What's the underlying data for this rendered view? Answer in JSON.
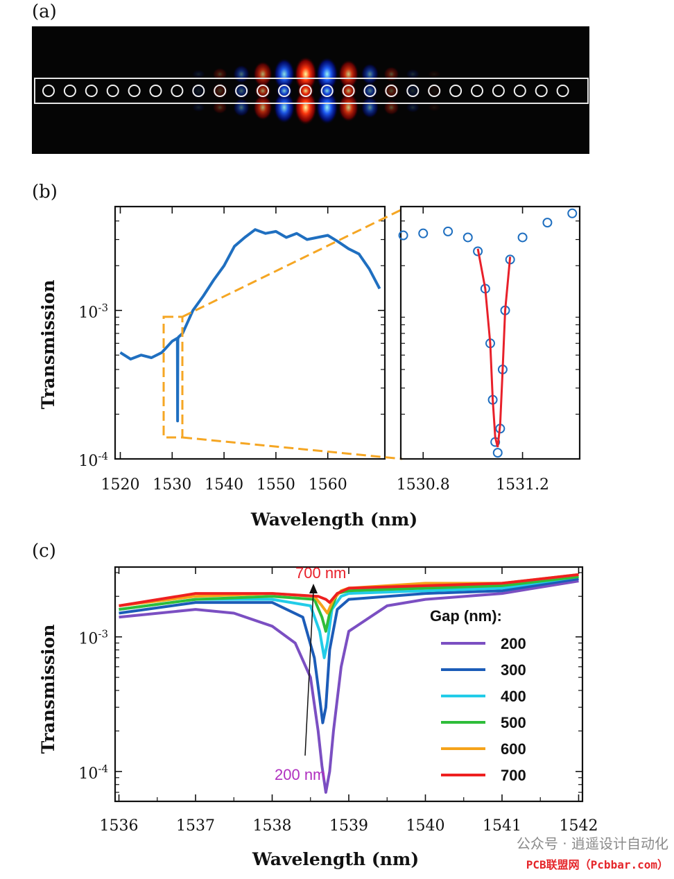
{
  "panels": {
    "a": "(a)",
    "b": "(b)",
    "c": "(c)"
  },
  "colors": {
    "blue": "#1f6fc0",
    "orange": "#f5a623",
    "red_fit": "#e8202a",
    "series": [
      "#7b4fc2",
      "#1c5cb8",
      "#22cce8",
      "#2ebd3a",
      "#f5a31a",
      "#ee2020"
    ]
  },
  "chart_data": [
    {
      "id": "b_main",
      "type": "line",
      "xlabel": "Wavelength (nm)",
      "ylabel": "Transmission",
      "x_ticks": [
        "1520",
        "1530",
        "1540",
        "1550",
        "1560"
      ],
      "y_ticks": [
        "10-3",
        "10-4"
      ],
      "xlim": [
        1519,
        1571
      ],
      "ylim": [
        0.0001,
        0.005
      ],
      "yscale": "log",
      "grid": false,
      "x": [
        1520,
        1522,
        1524,
        1526,
        1528,
        1530,
        1531,
        1531.05,
        1531.1,
        1531.2,
        1532,
        1534,
        1536,
        1538,
        1540,
        1542,
        1544,
        1546,
        1548,
        1550,
        1552,
        1554,
        1556,
        1558,
        1560,
        1562,
        1564,
        1566,
        1568,
        1570
      ],
      "y": [
        0.00052,
        0.00047,
        0.0005,
        0.00048,
        0.00052,
        0.00062,
        0.00065,
        0.00018,
        0.00064,
        0.00066,
        0.0007,
        0.001,
        0.00125,
        0.0016,
        0.002,
        0.0027,
        0.0031,
        0.0035,
        0.0033,
        0.0034,
        0.0031,
        0.0033,
        0.003,
        0.0031,
        0.0032,
        0.0029,
        0.0026,
        0.0024,
        0.0019,
        0.0014
      ]
    },
    {
      "id": "b_inset",
      "type": "scatter",
      "x_ticks": [
        "1530.8",
        "1531.2"
      ],
      "xlim": [
        1530.71,
        1531.43
      ],
      "ylim": [
        0.0001,
        0.005
      ],
      "yscale": "log",
      "series": [
        {
          "style": "markers",
          "x": [
            1530.72,
            1530.8,
            1530.9,
            1530.98,
            1531.02,
            1531.05,
            1531.07,
            1531.08,
            1531.09,
            1531.1,
            1531.11,
            1531.12,
            1531.13,
            1531.15,
            1531.2,
            1531.3,
            1531.4
          ],
          "y": [
            0.0032,
            0.0033,
            0.0034,
            0.0031,
            0.0025,
            0.0014,
            0.0006,
            0.00025,
            0.00013,
            0.00011,
            0.00016,
            0.0004,
            0.001,
            0.0022,
            0.0031,
            0.0039,
            0.0045
          ]
        },
        {
          "style": "fit",
          "x": [
            1531.02,
            1531.05,
            1531.07,
            1531.08,
            1531.09,
            1531.1,
            1531.11,
            1531.12,
            1531.13,
            1531.15
          ],
          "y": [
            0.0026,
            0.0014,
            0.0006,
            0.00025,
            0.00014,
            0.00012,
            0.00017,
            0.0004,
            0.001,
            0.0023
          ]
        }
      ]
    },
    {
      "id": "c",
      "type": "line",
      "xlabel": "Wavelength (nm)",
      "ylabel": "Transmission",
      "x_ticks": [
        "1536",
        "1537",
        "1538",
        "1539",
        "1540",
        "1541",
        "1542"
      ],
      "y_ticks": [
        "10-3",
        "10-4"
      ],
      "xlim": [
        1535.95,
        1542.05
      ],
      "ylim": [
        6e-05,
        0.0033
      ],
      "yscale": "log",
      "legend_title": "Gap (nm):",
      "legend_position": "right",
      "annotations": {
        "top": "700 nm",
        "bottom": "200 nm"
      },
      "series": [
        {
          "name": "200",
          "x": [
            1536,
            1537,
            1537.5,
            1538,
            1538.3,
            1538.5,
            1538.6,
            1538.65,
            1538.7,
            1538.75,
            1538.8,
            1538.9,
            1539,
            1539.5,
            1540,
            1541,
            1542
          ],
          "y": [
            0.0014,
            0.0016,
            0.0015,
            0.0012,
            0.0009,
            0.0005,
            0.0002,
            0.00011,
            7e-05,
            0.0001,
            0.0002,
            0.0006,
            0.0011,
            0.0017,
            0.0019,
            0.0021,
            0.0026
          ]
        },
        {
          "name": "300",
          "x": [
            1536,
            1537,
            1538,
            1538.4,
            1538.55,
            1538.62,
            1538.66,
            1538.7,
            1538.75,
            1538.85,
            1539,
            1540,
            1541,
            1542
          ],
          "y": [
            0.0015,
            0.0018,
            0.0018,
            0.0014,
            0.0007,
            0.00035,
            0.00023,
            0.0003,
            0.0008,
            0.0016,
            0.0019,
            0.0021,
            0.0022,
            0.0027
          ]
        },
        {
          "name": "400",
          "x": [
            1536,
            1537,
            1538,
            1538.5,
            1538.62,
            1538.68,
            1538.72,
            1538.78,
            1538.9,
            1539,
            1540,
            1541,
            1542
          ],
          "y": [
            0.0016,
            0.0019,
            0.0019,
            0.0017,
            0.0011,
            0.0007,
            0.0009,
            0.0016,
            0.002,
            0.0021,
            0.0022,
            0.0023,
            0.0028
          ]
        },
        {
          "name": "500",
          "x": [
            1536,
            1537,
            1538,
            1538.55,
            1538.65,
            1538.7,
            1538.75,
            1538.85,
            1539,
            1540,
            1541,
            1542
          ],
          "y": [
            0.0016,
            0.0019,
            0.002,
            0.0019,
            0.0014,
            0.0011,
            0.0015,
            0.0021,
            0.0022,
            0.0023,
            0.0024,
            0.0028
          ]
        },
        {
          "name": "600",
          "x": [
            1536,
            1537,
            1538,
            1538.55,
            1538.65,
            1538.72,
            1538.8,
            1538.9,
            1539,
            1540,
            1541,
            1542
          ],
          "y": [
            0.0017,
            0.002,
            0.0021,
            0.002,
            0.0017,
            0.0015,
            0.0019,
            0.0022,
            0.0023,
            0.0025,
            0.0025,
            0.0029
          ]
        },
        {
          "name": "700",
          "x": [
            1536,
            1537,
            1538,
            1538.6,
            1538.7,
            1538.75,
            1538.85,
            1539,
            1540,
            1541,
            1542
          ],
          "y": [
            0.0017,
            0.0021,
            0.0021,
            0.002,
            0.0019,
            0.0018,
            0.0021,
            0.0023,
            0.0024,
            0.0025,
            0.0029
          ]
        }
      ]
    }
  ],
  "watermark": {
    "line1": "公众号 · 逍遥设计自动化",
    "line2": "PCB联盟网（Pcbbar.com）"
  }
}
